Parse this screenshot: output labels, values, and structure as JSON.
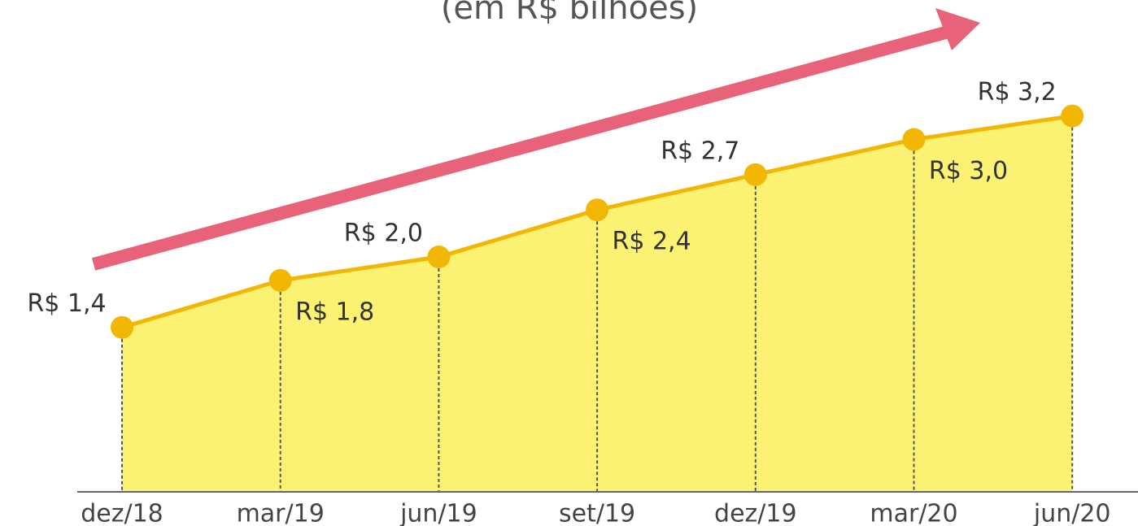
{
  "chart_data": {
    "type": "area",
    "subtitle": "(em R$ bilhoes)",
    "categories": [
      "dez/18",
      "mar/19",
      "jun/19",
      "set/19",
      "dez/19",
      "mar/20",
      "jun/20"
    ],
    "values": [
      1.4,
      1.8,
      2.0,
      2.4,
      2.7,
      3.0,
      3.2
    ],
    "value_labels": [
      "R$ 1,4",
      "R$ 1,8",
      "R$ 2,0",
      "R$ 2,4",
      "R$ 2,7",
      "R$ 3,0",
      "R$ 3,2"
    ],
    "color": "#f2b705",
    "fill": "#fbf274",
    "arrow_color": "#e8627a"
  }
}
